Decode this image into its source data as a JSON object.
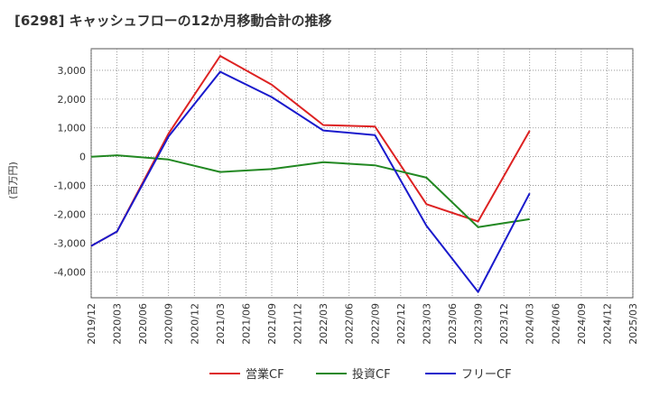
{
  "title": "[6298]  キャッシュフローの12か月移動合計の推移",
  "chart_data": {
    "type": "line",
    "title": "[6298]  キャッシュフローの12か月移動合計の推移",
    "ylabel": "(百万円)",
    "xlabel": "",
    "ylim": [
      -4900,
      3750
    ],
    "y_ticks": [
      3000,
      2000,
      1000,
      0,
      -1000,
      -2000,
      -3000,
      -4000
    ],
    "y_tick_labels": [
      "3,000",
      "2,000",
      "1,000",
      "0",
      "-1,000",
      "-2,000",
      "-3,000",
      "-4,000"
    ],
    "categories": [
      "2019/12",
      "2020/03",
      "2020/06",
      "2020/09",
      "2020/12",
      "2021/03",
      "2021/06",
      "2021/09",
      "2021/12",
      "2022/03",
      "2022/06",
      "2022/09",
      "2022/12",
      "2023/03",
      "2023/06",
      "2023/09",
      "2023/12",
      "2024/03",
      "2024/06",
      "2024/09",
      "2024/12",
      "2025/03"
    ],
    "grid": true,
    "legend_position": "bottom",
    "series": [
      {
        "name": "営業CF",
        "color": "#dd2222",
        "values": [
          -3100,
          -2600,
          null,
          800,
          null,
          3500,
          null,
          2500,
          null,
          1100,
          null,
          1050,
          null,
          -1650,
          null,
          -2250,
          null,
          900,
          null,
          null,
          null,
          null
        ]
      },
      {
        "name": "投資CF",
        "color": "#228822",
        "values": [
          0,
          50,
          null,
          -100,
          null,
          -530,
          null,
          -430,
          null,
          -190,
          null,
          -300,
          null,
          -730,
          null,
          -2450,
          null,
          -2170,
          null,
          null,
          null,
          null
        ]
      },
      {
        "name": "フリーCF",
        "color": "#1a1acc",
        "values": [
          -3100,
          -2600,
          null,
          700,
          null,
          2950,
          null,
          2070,
          null,
          910,
          null,
          750,
          null,
          -2400,
          null,
          -4700,
          null,
          -1270,
          null,
          null,
          null,
          null
        ]
      }
    ]
  }
}
